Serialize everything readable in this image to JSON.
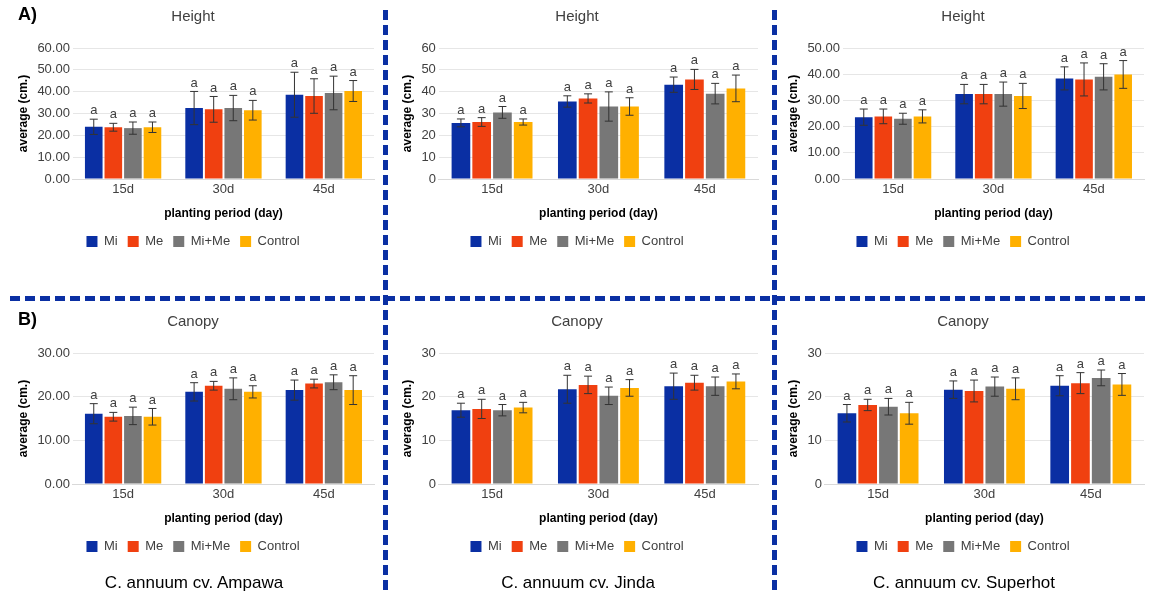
{
  "chart_data": [
    {
      "type": "bar",
      "title": "Height",
      "xlabel": "planting period (day)",
      "ylabel": "average (cm.)",
      "categories": [
        "15d",
        "30d",
        "45d"
      ],
      "ylim": [
        0,
        60
      ],
      "yticks": [
        {
          "value": 0,
          "label": "0.00"
        },
        {
          "value": 10,
          "label": "10.00"
        },
        {
          "value": 20,
          "label": "20.00"
        },
        {
          "value": 30,
          "label": "30.00"
        },
        {
          "value": 40,
          "label": "40.00"
        },
        {
          "value": 50,
          "label": "50.00"
        },
        {
          "value": 60,
          "label": "60.00"
        }
      ],
      "grid": "y",
      "legend": "bottom",
      "annotations": [
        "A)"
      ],
      "series": [
        {
          "name": "Mi",
          "color": "#0a2fa3",
          "values": [
            23.9,
            32.5,
            38.6
          ],
          "errors": [
            3.5,
            7.6,
            10.3
          ],
          "value_labels": [
            "a",
            "a",
            "a"
          ]
        },
        {
          "name": "Me",
          "color": "#f04010",
          "values": [
            23.7,
            31.9,
            38.0
          ],
          "errors": [
            1.8,
            5.9,
            7.9
          ],
          "value_labels": [
            "a",
            "a",
            "a"
          ]
        },
        {
          "name": "Mi+Me",
          "color": "#777777",
          "values": [
            23.3,
            32.5,
            39.4
          ],
          "errors": [
            2.8,
            5.8,
            7.7
          ],
          "value_labels": [
            "a",
            "a",
            "a"
          ]
        },
        {
          "name": "Control",
          "color": "#ffb000",
          "values": [
            23.7,
            31.5,
            40.3
          ],
          "errors": [
            2.4,
            4.5,
            4.8
          ],
          "value_labels": [
            "a",
            "a",
            "a"
          ]
        }
      ]
    },
    {
      "type": "bar",
      "title": "Height",
      "xlabel": "planting period (day)",
      "ylabel": "average (cm.)",
      "categories": [
        "15d",
        "30d",
        "45d"
      ],
      "ylim": [
        0,
        60
      ],
      "yticks": [
        0,
        10,
        20,
        30,
        40,
        50,
        60
      ],
      "grid": "y",
      "legend": "bottom",
      "series": [
        {
          "name": "Mi",
          "color": "#0a2fa3",
          "values": [
            25.7,
            35.5,
            43.2
          ],
          "errors": [
            1.8,
            2.6,
            3.5
          ],
          "value_labels": [
            "a",
            "a",
            "a"
          ]
        },
        {
          "name": "Me",
          "color": "#f04010",
          "values": [
            26.1,
            36.9,
            45.6
          ],
          "errors": [
            2.0,
            2.1,
            4.6
          ],
          "value_labels": [
            "a",
            "a",
            "a"
          ]
        },
        {
          "name": "Mi+Me",
          "color": "#777777",
          "values": [
            30.5,
            33.2,
            39.1
          ],
          "errors": [
            2.7,
            6.7,
            4.7
          ],
          "value_labels": [
            "a",
            "a",
            "a"
          ]
        },
        {
          "name": "Control",
          "color": "#ffb000",
          "values": [
            26.1,
            33.2,
            41.5
          ],
          "errors": [
            1.4,
            4.0,
            6.1
          ],
          "value_labels": [
            "a",
            "a",
            "a"
          ]
        }
      ]
    },
    {
      "type": "bar",
      "title": "Height",
      "xlabel": "planting period (day)",
      "ylabel": "average (cm.)",
      "categories": [
        "15d",
        "30d",
        "45d"
      ],
      "ylim": [
        0,
        50
      ],
      "yticks": [
        {
          "value": 0,
          "label": "0.00"
        },
        {
          "value": 10,
          "label": "10.00"
        },
        {
          "value": 20,
          "label": "20.00"
        },
        {
          "value": 30,
          "label": "30.00"
        },
        {
          "value": 40,
          "label": "40.00"
        },
        {
          "value": 50,
          "label": "50.00"
        }
      ],
      "grid": "y",
      "legend": "bottom",
      "series": [
        {
          "name": "Mi",
          "color": "#0a2fa3",
          "values": [
            23.6,
            32.4,
            38.4
          ],
          "errors": [
            3.1,
            3.7,
            4.4
          ],
          "value_labels": [
            "a",
            "a",
            "a"
          ]
        },
        {
          "name": "Me",
          "color": "#f04010",
          "values": [
            23.9,
            32.4,
            38.0
          ],
          "errors": [
            2.8,
            3.7,
            6.3
          ],
          "value_labels": [
            "a",
            "a",
            "a"
          ]
        },
        {
          "name": "Mi+Me",
          "color": "#777777",
          "values": [
            23.0,
            32.4,
            39.0
          ],
          "errors": [
            2.1,
            4.6,
            5.0
          ],
          "value_labels": [
            "a",
            "a",
            "a"
          ]
        },
        {
          "name": "Control",
          "color": "#ffb000",
          "values": [
            23.9,
            31.7,
            39.9
          ],
          "errors": [
            2.5,
            4.8,
            5.3
          ],
          "value_labels": [
            "a",
            "a",
            "a"
          ]
        }
      ]
    },
    {
      "type": "bar",
      "title": "Canopy",
      "xlabel": "planting period (day)",
      "ylabel": "average (cm.)",
      "categories": [
        "15d",
        "30d",
        "45d"
      ],
      "ylim": [
        0,
        30
      ],
      "yticks": [
        {
          "value": 0,
          "label": "0.00"
        },
        {
          "value": 10,
          "label": "10.00"
        },
        {
          "value": 20,
          "label": "20.00"
        },
        {
          "value": 30,
          "label": "30.00"
        }
      ],
      "grid": "y",
      "legend": "bottom",
      "annotations": [
        "B)",
        "C. annuum cv. Ampawa"
      ],
      "series": [
        {
          "name": "Mi",
          "color": "#0a2fa3",
          "values": [
            16.1,
            21.1,
            21.5
          ],
          "errors": [
            2.3,
            2.1,
            2.3
          ],
          "value_labels": [
            "a",
            "a",
            "a"
          ]
        },
        {
          "name": "Me",
          "color": "#f04010",
          "values": [
            15.4,
            22.5,
            23.0
          ],
          "errors": [
            1.0,
            1.0,
            1.0
          ],
          "value_labels": [
            "a",
            "a",
            "a"
          ]
        },
        {
          "name": "Mi+Me",
          "color": "#777777",
          "values": [
            15.6,
            21.8,
            23.3
          ],
          "errors": [
            2.0,
            2.5,
            1.7
          ],
          "value_labels": [
            "a",
            "a",
            "a"
          ]
        },
        {
          "name": "Control",
          "color": "#ffb000",
          "values": [
            15.4,
            21.1,
            21.5
          ],
          "errors": [
            1.9,
            1.4,
            3.3
          ],
          "value_labels": [
            "a",
            "a",
            "a"
          ]
        }
      ]
    },
    {
      "type": "bar",
      "title": "Canopy",
      "xlabel": "planting period (day)",
      "ylabel": "average (cm.)",
      "categories": [
        "15d",
        "30d",
        "45d"
      ],
      "ylim": [
        0,
        30
      ],
      "yticks": [
        0,
        10,
        20,
        30
      ],
      "grid": "y",
      "legend": "bottom",
      "annotations": [
        "C. annuum cv. Jinda"
      ],
      "series": [
        {
          "name": "Mi",
          "color": "#0a2fa3",
          "values": [
            16.9,
            21.7,
            22.4
          ],
          "errors": [
            1.6,
            3.2,
            3.0
          ],
          "value_labels": [
            "a",
            "a",
            "a"
          ]
        },
        {
          "name": "Me",
          "color": "#f04010",
          "values": [
            17.2,
            22.7,
            23.2
          ],
          "errors": [
            2.2,
            2.0,
            1.7
          ],
          "value_labels": [
            "a",
            "a",
            "a"
          ]
        },
        {
          "name": "Mi+Me",
          "color": "#777777",
          "values": [
            16.9,
            20.2,
            22.4
          ],
          "errors": [
            1.3,
            2.0,
            2.1
          ],
          "value_labels": [
            "a",
            "a",
            "a"
          ]
        },
        {
          "name": "Control",
          "color": "#ffb000",
          "values": [
            17.5,
            22.0,
            23.5
          ],
          "errors": [
            1.2,
            1.9,
            1.7
          ],
          "value_labels": [
            "a",
            "a",
            "a"
          ]
        }
      ]
    },
    {
      "type": "bar",
      "title": "Canopy",
      "xlabel": "planting period (day)",
      "ylabel": "average (cm.)",
      "categories": [
        "15d",
        "30d",
        "45d"
      ],
      "ylim": [
        0,
        30
      ],
      "yticks": [
        0,
        10,
        20,
        30
      ],
      "grid": "y",
      "legend": "bottom",
      "annotations": [
        "C. annuum cv. Superhot"
      ],
      "series": [
        {
          "name": "Mi",
          "color": "#0a2fa3",
          "values": [
            16.2,
            21.6,
            22.5
          ],
          "errors": [
            2.0,
            2.0,
            2.3
          ],
          "value_labels": [
            "a",
            "a",
            "a"
          ]
        },
        {
          "name": "Me",
          "color": "#f04010",
          "values": [
            18.1,
            21.3,
            23.1
          ],
          "errors": [
            1.3,
            2.5,
            2.4
          ],
          "value_labels": [
            "a",
            "a",
            "a"
          ]
        },
        {
          "name": "Mi+Me",
          "color": "#777777",
          "values": [
            17.7,
            22.3,
            24.3
          ],
          "errors": [
            1.9,
            2.2,
            1.8
          ],
          "value_labels": [
            "a",
            "a",
            "a"
          ]
        },
        {
          "name": "Control",
          "color": "#ffb000",
          "values": [
            16.2,
            21.8,
            22.8
          ],
          "errors": [
            2.5,
            2.5,
            2.5
          ],
          "value_labels": [
            "a",
            "a",
            "a"
          ]
        }
      ]
    }
  ]
}
